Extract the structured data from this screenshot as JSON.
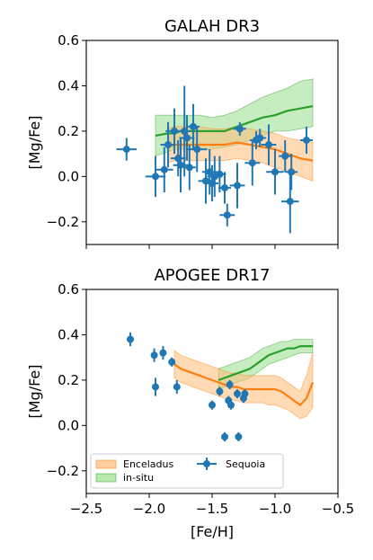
{
  "colors": {
    "enceladus_line": "#ff7f0e",
    "enceladus_band": "#ffbb78",
    "insitu_line": "#2ca02c",
    "insitu_band": "#98df8a",
    "sequoia": "#1f77b4"
  },
  "chart_data": [
    {
      "type": "scatter",
      "title": "GALAH DR3",
      "xlabel": "",
      "ylabel": "[Mg/Fe]",
      "xlim": [
        -2.5,
        -0.5
      ],
      "ylim": [
        -0.3,
        0.6
      ],
      "xticks": [
        -2.5,
        -2.0,
        -1.5,
        -1.0,
        -0.5
      ],
      "yticks": [
        -0.2,
        0.0,
        0.2,
        0.4,
        0.6
      ],
      "yticklabels": [
        "−0.2",
        "0.0",
        "0.2",
        "0.4",
        "0.6"
      ],
      "show_xticklabels": false,
      "series": [
        {
          "name": "in-situ",
          "kind": "band",
          "x": [
            -1.95,
            -1.85,
            -1.8,
            -1.75,
            -1.7,
            -1.6,
            -1.5,
            -1.4,
            -1.3,
            -1.2,
            -1.1,
            -1.0,
            -0.9,
            -0.8,
            -0.7
          ],
          "mid": [
            0.18,
            0.19,
            0.19,
            0.2,
            0.2,
            0.2,
            0.2,
            0.2,
            0.22,
            0.24,
            0.26,
            0.27,
            0.29,
            0.3,
            0.31
          ],
          "lower": [
            0.09,
            0.11,
            0.12,
            0.12,
            0.12,
            0.12,
            0.12,
            0.13,
            0.14,
            0.16,
            0.18,
            0.2,
            0.2,
            0.21,
            0.22
          ],
          "upper": [
            0.27,
            0.27,
            0.27,
            0.27,
            0.27,
            0.27,
            0.26,
            0.27,
            0.29,
            0.32,
            0.35,
            0.37,
            0.39,
            0.42,
            0.43
          ]
        },
        {
          "name": "Enceladus",
          "kind": "band",
          "x": [
            -1.85,
            -1.8,
            -1.7,
            -1.6,
            -1.5,
            -1.4,
            -1.3,
            -1.2,
            -1.1,
            -1.0,
            -0.9,
            -0.8,
            -0.7
          ],
          "mid": [
            0.13,
            0.14,
            0.14,
            0.14,
            0.14,
            0.14,
            0.15,
            0.14,
            0.13,
            0.12,
            0.1,
            0.08,
            0.07
          ],
          "lower": [
            0.06,
            0.07,
            0.07,
            0.07,
            0.07,
            0.07,
            0.08,
            0.07,
            0.06,
            0.04,
            0.02,
            0.0,
            -0.02
          ],
          "upper": [
            0.21,
            0.22,
            0.22,
            0.22,
            0.21,
            0.21,
            0.22,
            0.21,
            0.2,
            0.19,
            0.17,
            0.16,
            0.15
          ]
        },
        {
          "name": "Sequoia",
          "kind": "errorbar",
          "points": [
            {
              "x": -2.18,
              "y": 0.12,
              "xerr": 0.08,
              "yerr": 0.05
            },
            {
              "x": -1.95,
              "y": 0.0,
              "xerr": 0.08,
              "yerr": 0.09
            },
            {
              "x": -1.88,
              "y": 0.03,
              "xerr": 0.07,
              "yerr": 0.1
            },
            {
              "x": -1.85,
              "y": 0.14,
              "xerr": 0.06,
              "yerr": 0.1
            },
            {
              "x": -1.8,
              "y": 0.2,
              "xerr": 0.07,
              "yerr": 0.1
            },
            {
              "x": -1.77,
              "y": 0.08,
              "xerr": 0.06,
              "yerr": 0.08
            },
            {
              "x": -1.75,
              "y": 0.05,
              "xerr": 0.06,
              "yerr": 0.12
            },
            {
              "x": -1.72,
              "y": 0.2,
              "xerr": 0.05,
              "yerr": 0.2
            },
            {
              "x": -1.7,
              "y": 0.17,
              "xerr": 0.06,
              "yerr": 0.1
            },
            {
              "x": -1.68,
              "y": 0.04,
              "xerr": 0.05,
              "yerr": 0.1
            },
            {
              "x": -1.65,
              "y": 0.22,
              "xerr": 0.05,
              "yerr": 0.1
            },
            {
              "x": -1.62,
              "y": 0.12,
              "xerr": 0.08,
              "yerr": 0.1
            },
            {
              "x": -1.55,
              "y": -0.02,
              "xerr": 0.06,
              "yerr": 0.1
            },
            {
              "x": -1.52,
              "y": 0.02,
              "xerr": 0.06,
              "yerr": 0.1
            },
            {
              "x": -1.5,
              "y": -0.03,
              "xerr": 0.05,
              "yerr": 0.08
            },
            {
              "x": -1.48,
              "y": 0.0,
              "xerr": 0.06,
              "yerr": 0.09
            },
            {
              "x": -1.44,
              "y": 0.01,
              "xerr": 0.05,
              "yerr": 0.08
            },
            {
              "x": -1.4,
              "y": -0.05,
              "xerr": 0.05,
              "yerr": 0.07
            },
            {
              "x": -1.38,
              "y": -0.17,
              "xerr": 0.06,
              "yerr": 0.05
            },
            {
              "x": -1.3,
              "y": -0.04,
              "xerr": 0.06,
              "yerr": 0.1
            },
            {
              "x": -1.28,
              "y": 0.21,
              "xerr": 0.05,
              "yerr": 0.03
            },
            {
              "x": -1.18,
              "y": 0.06,
              "xerr": 0.06,
              "yerr": 0.1
            },
            {
              "x": -1.15,
              "y": 0.16,
              "xerr": 0.05,
              "yerr": 0.04
            },
            {
              "x": -1.12,
              "y": 0.17,
              "xerr": 0.05,
              "yerr": 0.04
            },
            {
              "x": -1.05,
              "y": 0.14,
              "xerr": 0.06,
              "yerr": 0.09
            },
            {
              "x": -1.0,
              "y": 0.02,
              "xerr": 0.07,
              "yerr": 0.1
            },
            {
              "x": -0.92,
              "y": 0.09,
              "xerr": 0.05,
              "yerr": 0.07
            },
            {
              "x": -0.87,
              "y": 0.02,
              "xerr": 0.05,
              "yerr": 0.08
            },
            {
              "x": -0.88,
              "y": -0.11,
              "xerr": 0.07,
              "yerr": 0.14
            },
            {
              "x": -0.75,
              "y": 0.16,
              "xerr": 0.05,
              "yerr": 0.06
            }
          ]
        }
      ]
    },
    {
      "type": "scatter",
      "title": "APOGEE DR17",
      "xlabel": "[Fe/H]",
      "ylabel": "[Mg/Fe]",
      "xlim": [
        -2.5,
        -0.5
      ],
      "ylim": [
        -0.3,
        0.6
      ],
      "xticks": [
        -2.5,
        -2.0,
        -1.5,
        -1.0,
        -0.5
      ],
      "xticklabels": [
        "−2.5",
        "−2.0",
        "−1.5",
        "−1.0",
        "−0.5"
      ],
      "yticks": [
        -0.2,
        0.0,
        0.2,
        0.4,
        0.6
      ],
      "yticklabels": [
        "−0.2",
        "0.0",
        "0.2",
        "0.4",
        "0.6"
      ],
      "show_xticklabels": true,
      "legend": {
        "position": "lower-left",
        "entries": [
          "Enceladus",
          "in-situ",
          "Sequoia"
        ]
      },
      "series": [
        {
          "name": "in-situ",
          "kind": "band",
          "x": [
            -1.45,
            -1.4,
            -1.35,
            -1.3,
            -1.25,
            -1.2,
            -1.15,
            -1.1,
            -1.05,
            -1.0,
            -0.95,
            -0.9,
            -0.85,
            -0.8,
            -0.75,
            -0.7
          ],
          "mid": [
            0.2,
            0.21,
            0.22,
            0.23,
            0.24,
            0.25,
            0.27,
            0.29,
            0.31,
            0.32,
            0.33,
            0.34,
            0.34,
            0.35,
            0.35,
            0.35
          ],
          "lower": [
            0.16,
            0.17,
            0.18,
            0.19,
            0.2,
            0.21,
            0.23,
            0.25,
            0.27,
            0.28,
            0.29,
            0.3,
            0.31,
            0.32,
            0.32,
            0.32
          ],
          "upper": [
            0.25,
            0.26,
            0.27,
            0.28,
            0.29,
            0.3,
            0.32,
            0.34,
            0.35,
            0.36,
            0.37,
            0.37,
            0.38,
            0.38,
            0.38,
            0.38
          ]
        },
        {
          "name": "Enceladus",
          "kind": "band",
          "x": [
            -1.8,
            -1.75,
            -1.7,
            -1.65,
            -1.6,
            -1.55,
            -1.5,
            -1.45,
            -1.4,
            -1.35,
            -1.3,
            -1.25,
            -1.2,
            -1.15,
            -1.1,
            -1.05,
            -1.0,
            -0.95,
            -0.9,
            -0.85,
            -0.8,
            -0.75,
            -0.7
          ],
          "mid": [
            0.27,
            0.25,
            0.24,
            0.23,
            0.22,
            0.21,
            0.2,
            0.19,
            0.18,
            0.17,
            0.17,
            0.16,
            0.16,
            0.16,
            0.16,
            0.16,
            0.16,
            0.15,
            0.13,
            0.11,
            0.09,
            0.12,
            0.19
          ],
          "lower": [
            0.21,
            0.19,
            0.18,
            0.17,
            0.16,
            0.15,
            0.14,
            0.13,
            0.12,
            0.11,
            0.11,
            0.1,
            0.1,
            0.1,
            0.1,
            0.09,
            0.09,
            0.08,
            0.07,
            0.05,
            0.03,
            0.04,
            0.08
          ],
          "upper": [
            0.33,
            0.31,
            0.3,
            0.29,
            0.28,
            0.27,
            0.26,
            0.25,
            0.24,
            0.23,
            0.23,
            0.22,
            0.22,
            0.22,
            0.22,
            0.22,
            0.22,
            0.21,
            0.19,
            0.17,
            0.15,
            0.22,
            0.32
          ]
        },
        {
          "name": "Sequoia",
          "kind": "errorbar",
          "points": [
            {
              "x": -2.15,
              "y": 0.38,
              "xerr": 0.02,
              "yerr": 0.03
            },
            {
              "x": -1.96,
              "y": 0.31,
              "xerr": 0.02,
              "yerr": 0.03
            },
            {
              "x": -1.95,
              "y": 0.17,
              "xerr": 0.02,
              "yerr": 0.04
            },
            {
              "x": -1.89,
              "y": 0.32,
              "xerr": 0.02,
              "yerr": 0.03
            },
            {
              "x": -1.82,
              "y": 0.28,
              "xerr": 0.02,
              "yerr": 0.02
            },
            {
              "x": -1.78,
              "y": 0.17,
              "xerr": 0.02,
              "yerr": 0.03
            },
            {
              "x": -1.5,
              "y": 0.09,
              "xerr": 0.02,
              "yerr": 0.02
            },
            {
              "x": -1.44,
              "y": 0.15,
              "xerr": 0.02,
              "yerr": 0.02
            },
            {
              "x": -1.4,
              "y": -0.05,
              "xerr": 0.02,
              "yerr": 0.02
            },
            {
              "x": -1.37,
              "y": 0.11,
              "xerr": 0.02,
              "yerr": 0.02
            },
            {
              "x": -1.36,
              "y": 0.18,
              "xerr": 0.02,
              "yerr": 0.02
            },
            {
              "x": -1.35,
              "y": 0.09,
              "xerr": 0.02,
              "yerr": 0.02
            },
            {
              "x": -1.3,
              "y": 0.14,
              "xerr": 0.02,
              "yerr": 0.02
            },
            {
              "x": -1.29,
              "y": -0.05,
              "xerr": 0.02,
              "yerr": 0.02
            },
            {
              "x": -1.25,
              "y": 0.12,
              "xerr": 0.02,
              "yerr": 0.02
            },
            {
              "x": -1.24,
              "y": 0.14,
              "xerr": 0.02,
              "yerr": 0.02
            }
          ]
        }
      ]
    }
  ]
}
